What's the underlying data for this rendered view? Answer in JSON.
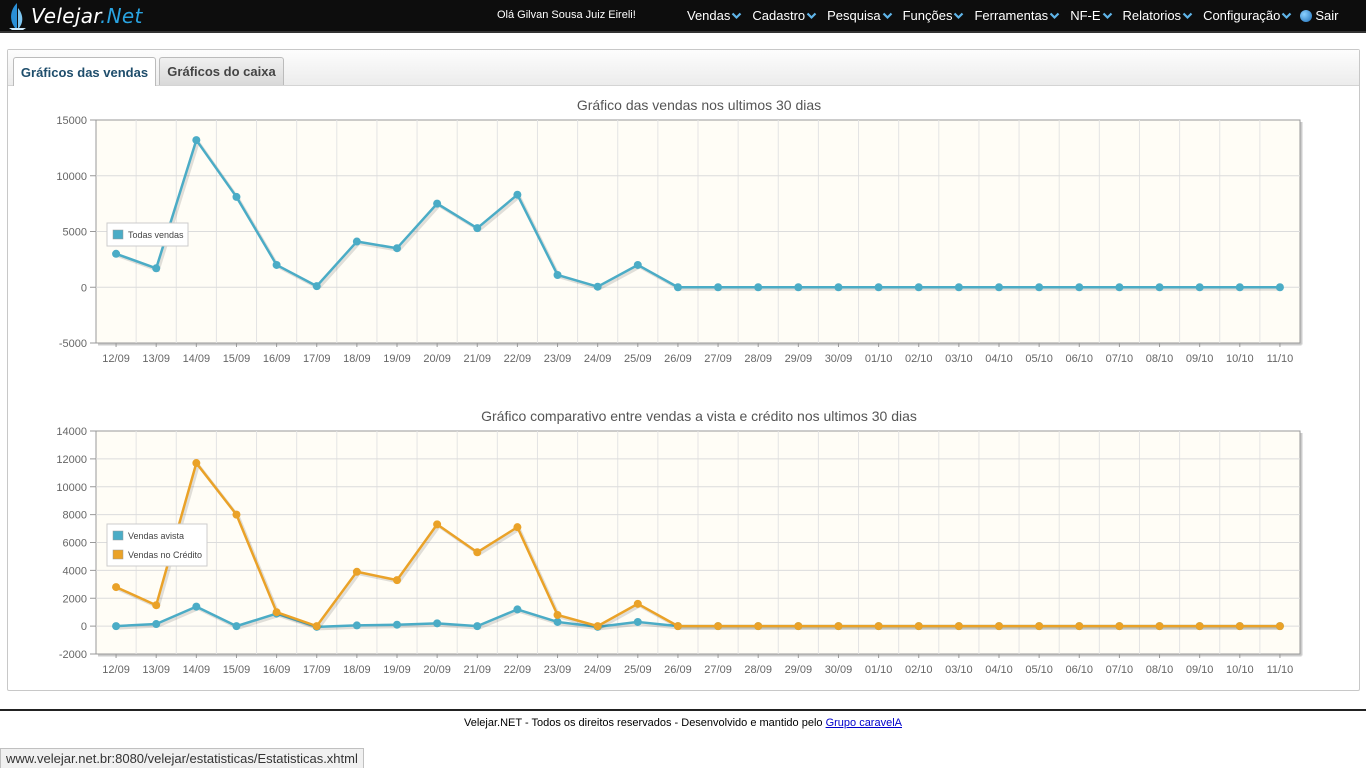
{
  "header": {
    "logo_text": "Velejar",
    "logo_accent": ".Net",
    "greeting": "Olá Gilvan Sousa Juiz Eireli!",
    "menu": [
      {
        "label": "Vendas",
        "name": "menu-vendas"
      },
      {
        "label": "Cadastro",
        "name": "menu-cadastro"
      },
      {
        "label": "Pesquisa",
        "name": "menu-pesquisa"
      },
      {
        "label": "Funções",
        "name": "menu-funcoes"
      },
      {
        "label": "Ferramentas",
        "name": "menu-ferramentas"
      },
      {
        "label": "NF-E",
        "name": "menu-nfe"
      },
      {
        "label": "Relatorios",
        "name": "menu-relatorios"
      },
      {
        "label": "Configuração",
        "name": "menu-configuracao"
      }
    ],
    "logout_label": "Sair"
  },
  "tabs": [
    {
      "label": "Gráficos das vendas",
      "active": true
    },
    {
      "label": "Gráficos do caixa",
      "active": false
    }
  ],
  "colors": {
    "blue": "#4bacc6",
    "orange": "#eaa228",
    "plot_bg": "#fffdf6"
  },
  "chart_data": [
    {
      "type": "line",
      "title": "Gráfico das vendas nos ultimos 30 dias",
      "ylim": [
        -5000,
        15000
      ],
      "yticks": [
        15000,
        10000,
        5000,
        0,
        -5000
      ],
      "categories": [
        "12/09",
        "13/09",
        "14/09",
        "15/09",
        "16/09",
        "17/09",
        "18/09",
        "19/09",
        "20/09",
        "21/09",
        "22/09",
        "23/09",
        "24/09",
        "25/09",
        "26/09",
        "27/09",
        "28/09",
        "29/09",
        "30/09",
        "01/10",
        "02/10",
        "03/10",
        "04/10",
        "05/10",
        "06/10",
        "07/10",
        "08/10",
        "09/10",
        "10/10",
        "11/10"
      ],
      "legend_position": "left",
      "series": [
        {
          "name": "Todas vendas",
          "color": "#4bacc6",
          "values": [
            3000,
            1700,
            13200,
            8100,
            2000,
            100,
            4100,
            3500,
            7500,
            5300,
            8300,
            1100,
            50,
            2000,
            0,
            0,
            0,
            0,
            0,
            0,
            0,
            0,
            0,
            0,
            0,
            0,
            0,
            0,
            0,
            0
          ]
        }
      ]
    },
    {
      "type": "line",
      "title": "Gráfico comparativo entre vendas a vista e crédito nos ultimos 30 dias",
      "ylim": [
        -2000,
        14000
      ],
      "yticks": [
        14000,
        12000,
        10000,
        8000,
        6000,
        4000,
        2000,
        0,
        -2000
      ],
      "categories": [
        "12/09",
        "13/09",
        "14/09",
        "15/09",
        "16/09",
        "17/09",
        "18/09",
        "19/09",
        "20/09",
        "21/09",
        "22/09",
        "23/09",
        "24/09",
        "25/09",
        "26/09",
        "27/09",
        "28/09",
        "29/09",
        "30/09",
        "01/10",
        "02/10",
        "03/10",
        "04/10",
        "05/10",
        "06/10",
        "07/10",
        "08/10",
        "09/10",
        "10/10",
        "11/10"
      ],
      "legend_position": "left",
      "series": [
        {
          "name": "Vendas avista",
          "color": "#4bacc6",
          "values": [
            0,
            150,
            1400,
            0,
            900,
            -50,
            50,
            100,
            200,
            0,
            1200,
            300,
            -50,
            300,
            0,
            0,
            0,
            0,
            0,
            0,
            0,
            0,
            0,
            0,
            0,
            0,
            0,
            0,
            0,
            0
          ]
        },
        {
          "name": "Vendas no Crédito",
          "color": "#eaa228",
          "values": [
            2800,
            1500,
            11700,
            8000,
            1000,
            0,
            3900,
            3300,
            7300,
            5300,
            7100,
            800,
            0,
            1600,
            0,
            0,
            0,
            0,
            0,
            0,
            0,
            0,
            0,
            0,
            0,
            0,
            0,
            0,
            0,
            0
          ]
        }
      ]
    }
  ],
  "footer": {
    "text": "Velejar.NET - Todos os direitos reservados - Desenvolvido e mantido pelo ",
    "link": "Grupo caravelA"
  },
  "statusbar": {
    "url": "www.velejar.net.br:8080/velejar/estatisticas/Estatisticas.xhtml"
  }
}
